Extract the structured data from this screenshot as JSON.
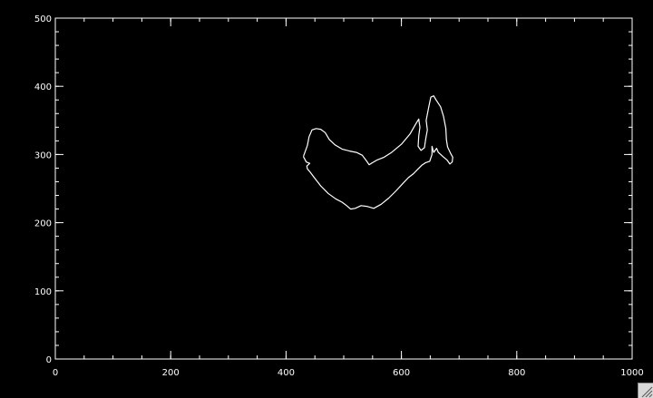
{
  "chart_data": {
    "type": "line",
    "title": "",
    "xlabel": "",
    "ylabel": "",
    "xlim": [
      0,
      1000
    ],
    "ylim": [
      0,
      500
    ],
    "x_ticks": [
      0,
      200,
      400,
      600,
      800,
      1000
    ],
    "y_ticks": [
      0,
      100,
      200,
      300,
      400,
      500
    ],
    "x_tick_labels": [
      "0",
      "200",
      "400",
      "600",
      "800",
      "1000"
    ],
    "y_tick_labels": [
      "0",
      "100",
      "200",
      "300",
      "400",
      "500"
    ],
    "x_minor_step": 50,
    "y_minor_step": 20,
    "grid": false,
    "colors": {
      "background": "#000000",
      "foreground": "#ffffff"
    },
    "series": [
      {
        "values": [
          [
            430,
            297
          ],
          [
            437,
            313
          ],
          [
            440,
            326
          ],
          [
            445,
            336
          ],
          [
            452,
            338
          ],
          [
            460,
            337
          ],
          [
            468,
            332
          ],
          [
            475,
            322
          ],
          [
            485,
            314
          ],
          [
            497,
            308
          ],
          [
            510,
            305
          ],
          [
            522,
            303
          ],
          [
            532,
            299
          ],
          [
            540,
            290
          ],
          [
            544,
            285
          ],
          [
            550,
            288
          ],
          [
            558,
            292
          ],
          [
            570,
            296
          ],
          [
            583,
            303
          ],
          [
            600,
            315
          ],
          [
            615,
            330
          ],
          [
            625,
            345
          ],
          [
            630,
            352
          ],
          [
            632,
            340
          ],
          [
            630,
            327
          ],
          [
            629,
            312
          ],
          [
            634,
            306
          ],
          [
            640,
            310
          ],
          [
            642,
            322
          ],
          [
            645,
            336
          ],
          [
            643,
            350
          ],
          [
            647,
            368
          ],
          [
            651,
            384
          ],
          [
            656,
            386
          ],
          [
            660,
            380
          ],
          [
            668,
            370
          ],
          [
            673,
            356
          ],
          [
            677,
            338
          ],
          [
            678,
            322
          ],
          [
            680,
            311
          ],
          [
            685,
            302
          ],
          [
            689,
            296
          ],
          [
            688,
            289
          ],
          [
            684,
            286
          ],
          [
            679,
            292
          ],
          [
            672,
            297
          ],
          [
            664,
            303
          ],
          [
            661,
            309
          ],
          [
            656,
            303
          ],
          [
            653,
            312
          ],
          [
            653,
            300
          ],
          [
            649,
            290
          ],
          [
            642,
            288
          ],
          [
            635,
            284
          ],
          [
            628,
            278
          ],
          [
            621,
            272
          ],
          [
            612,
            266
          ],
          [
            602,
            257
          ],
          [
            590,
            246
          ],
          [
            578,
            236
          ],
          [
            565,
            227
          ],
          [
            552,
            221
          ],
          [
            540,
            224
          ],
          [
            530,
            225
          ],
          [
            520,
            221
          ],
          [
            512,
            220
          ],
          [
            505,
            225
          ],
          [
            497,
            230
          ],
          [
            486,
            235
          ],
          [
            473,
            243
          ],
          [
            460,
            254
          ],
          [
            449,
            266
          ],
          [
            442,
            274
          ],
          [
            437,
            279
          ],
          [
            436,
            283
          ],
          [
            441,
            287
          ],
          [
            435,
            289
          ],
          [
            430,
            297
          ]
        ]
      }
    ]
  }
}
